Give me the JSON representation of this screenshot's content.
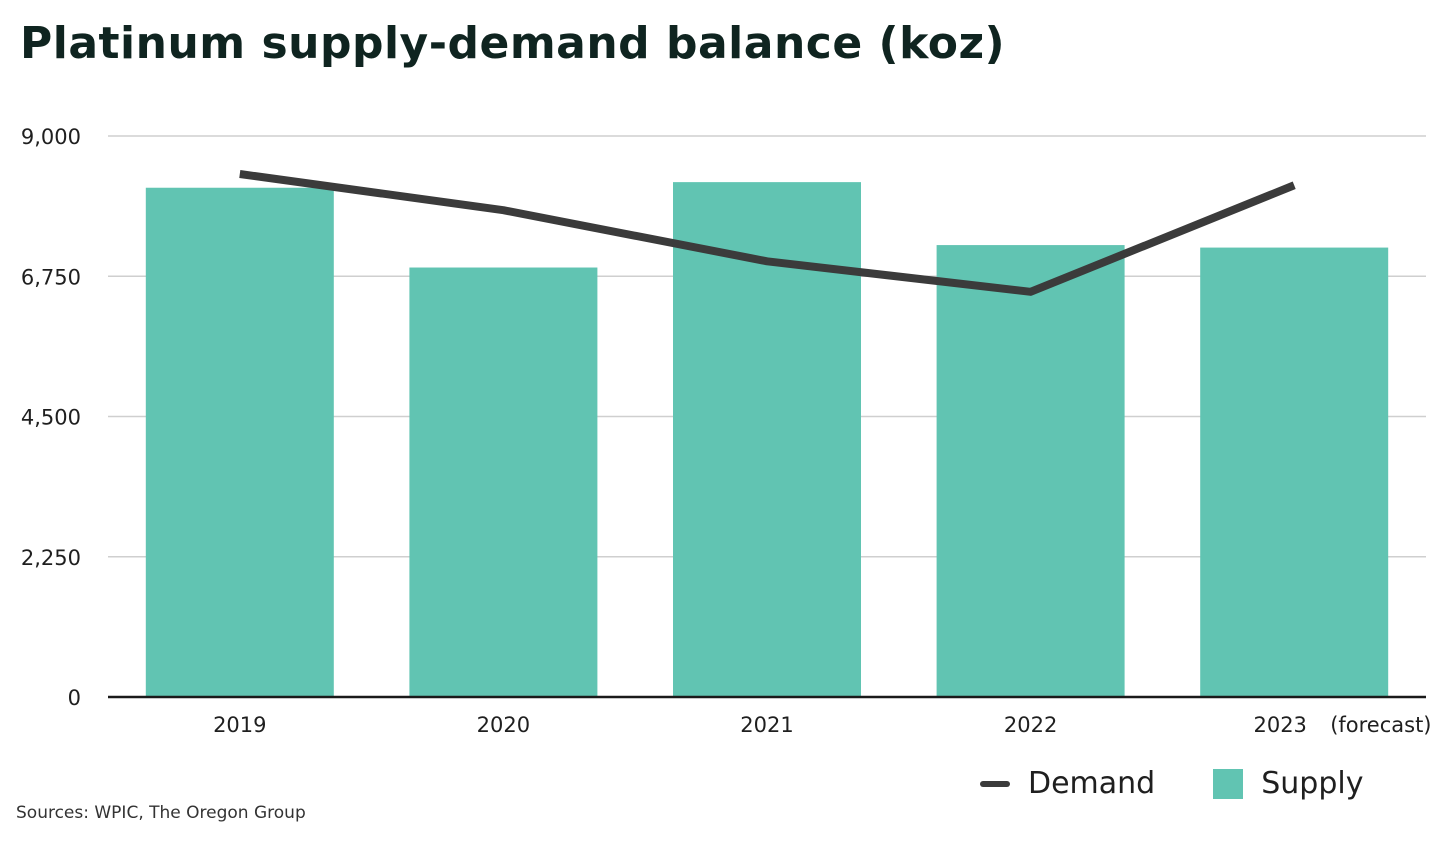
{
  "chart_data": {
    "type": "bar",
    "title": "Platinum supply-demand balance (koz)",
    "categories": [
      "2019",
      "2020",
      "2021",
      "2022",
      "2023"
    ],
    "forecast_note": "(forecast)",
    "series": [
      {
        "name": "Supply",
        "kind": "bar",
        "color": "#61c4b2",
        "values": [
          8170,
          6890,
          8260,
          7250,
          7210
        ]
      },
      {
        "name": "Demand",
        "kind": "line",
        "color": "#3b3b3b",
        "values": [
          8390,
          7810,
          6990,
          6500,
          8210
        ]
      }
    ],
    "yticks": [
      0,
      2250,
      4500,
      6750,
      9000
    ],
    "ytick_labels": [
      "0",
      "2,250",
      "4,500",
      "6,750",
      "9,000"
    ],
    "ylim": [
      0,
      9000
    ],
    "xlabel": "",
    "ylabel": "",
    "grid": true,
    "legend": {
      "position": "bottom-right",
      "demand_label": "Demand",
      "supply_label": "Supply"
    },
    "source": "Sources: WPIC, The Oregon Group"
  }
}
